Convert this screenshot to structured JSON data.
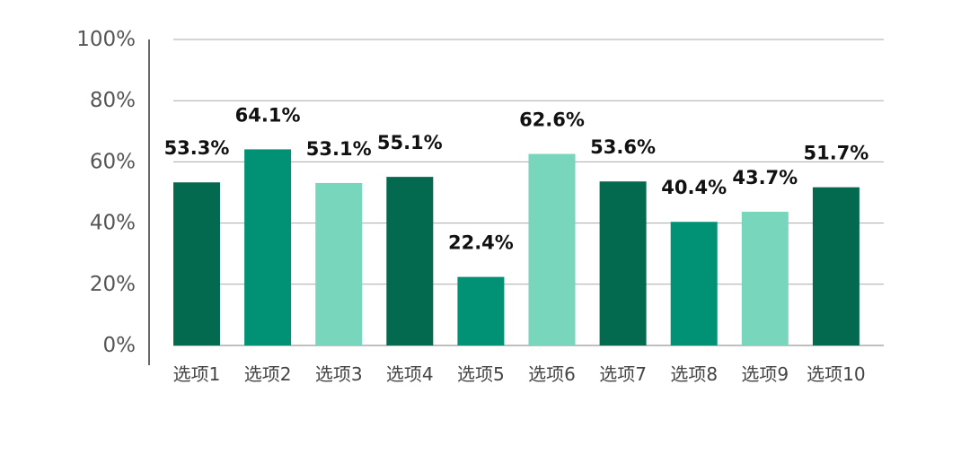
{
  "chart_data": {
    "type": "bar",
    "categories": [
      "选项1",
      "选项2",
      "选项3",
      "选项4",
      "选项5",
      "选项6",
      "选项7",
      "选项8",
      "选项9",
      "选项10"
    ],
    "values": [
      53.3,
      64.1,
      53.1,
      55.1,
      22.4,
      62.6,
      53.6,
      40.4,
      43.7,
      51.7
    ],
    "data_labels": [
      "53.3%",
      "64.1%",
      "53.1%",
      "55.1%",
      "22.4%",
      "62.6%",
      "53.6%",
      "40.4%",
      "43.7%",
      "51.7%"
    ],
    "ylim": [
      0,
      100
    ],
    "yticks": [
      "0%",
      "20%",
      "40%",
      "60%",
      "80%",
      "100%"
    ],
    "grid": true,
    "colors": [
      "#046A4F",
      "#019276",
      "#77D6BB",
      "#046A4F",
      "#019276",
      "#77D6BB",
      "#046A4F",
      "#019276",
      "#77D6BB",
      "#046A4F"
    ]
  }
}
